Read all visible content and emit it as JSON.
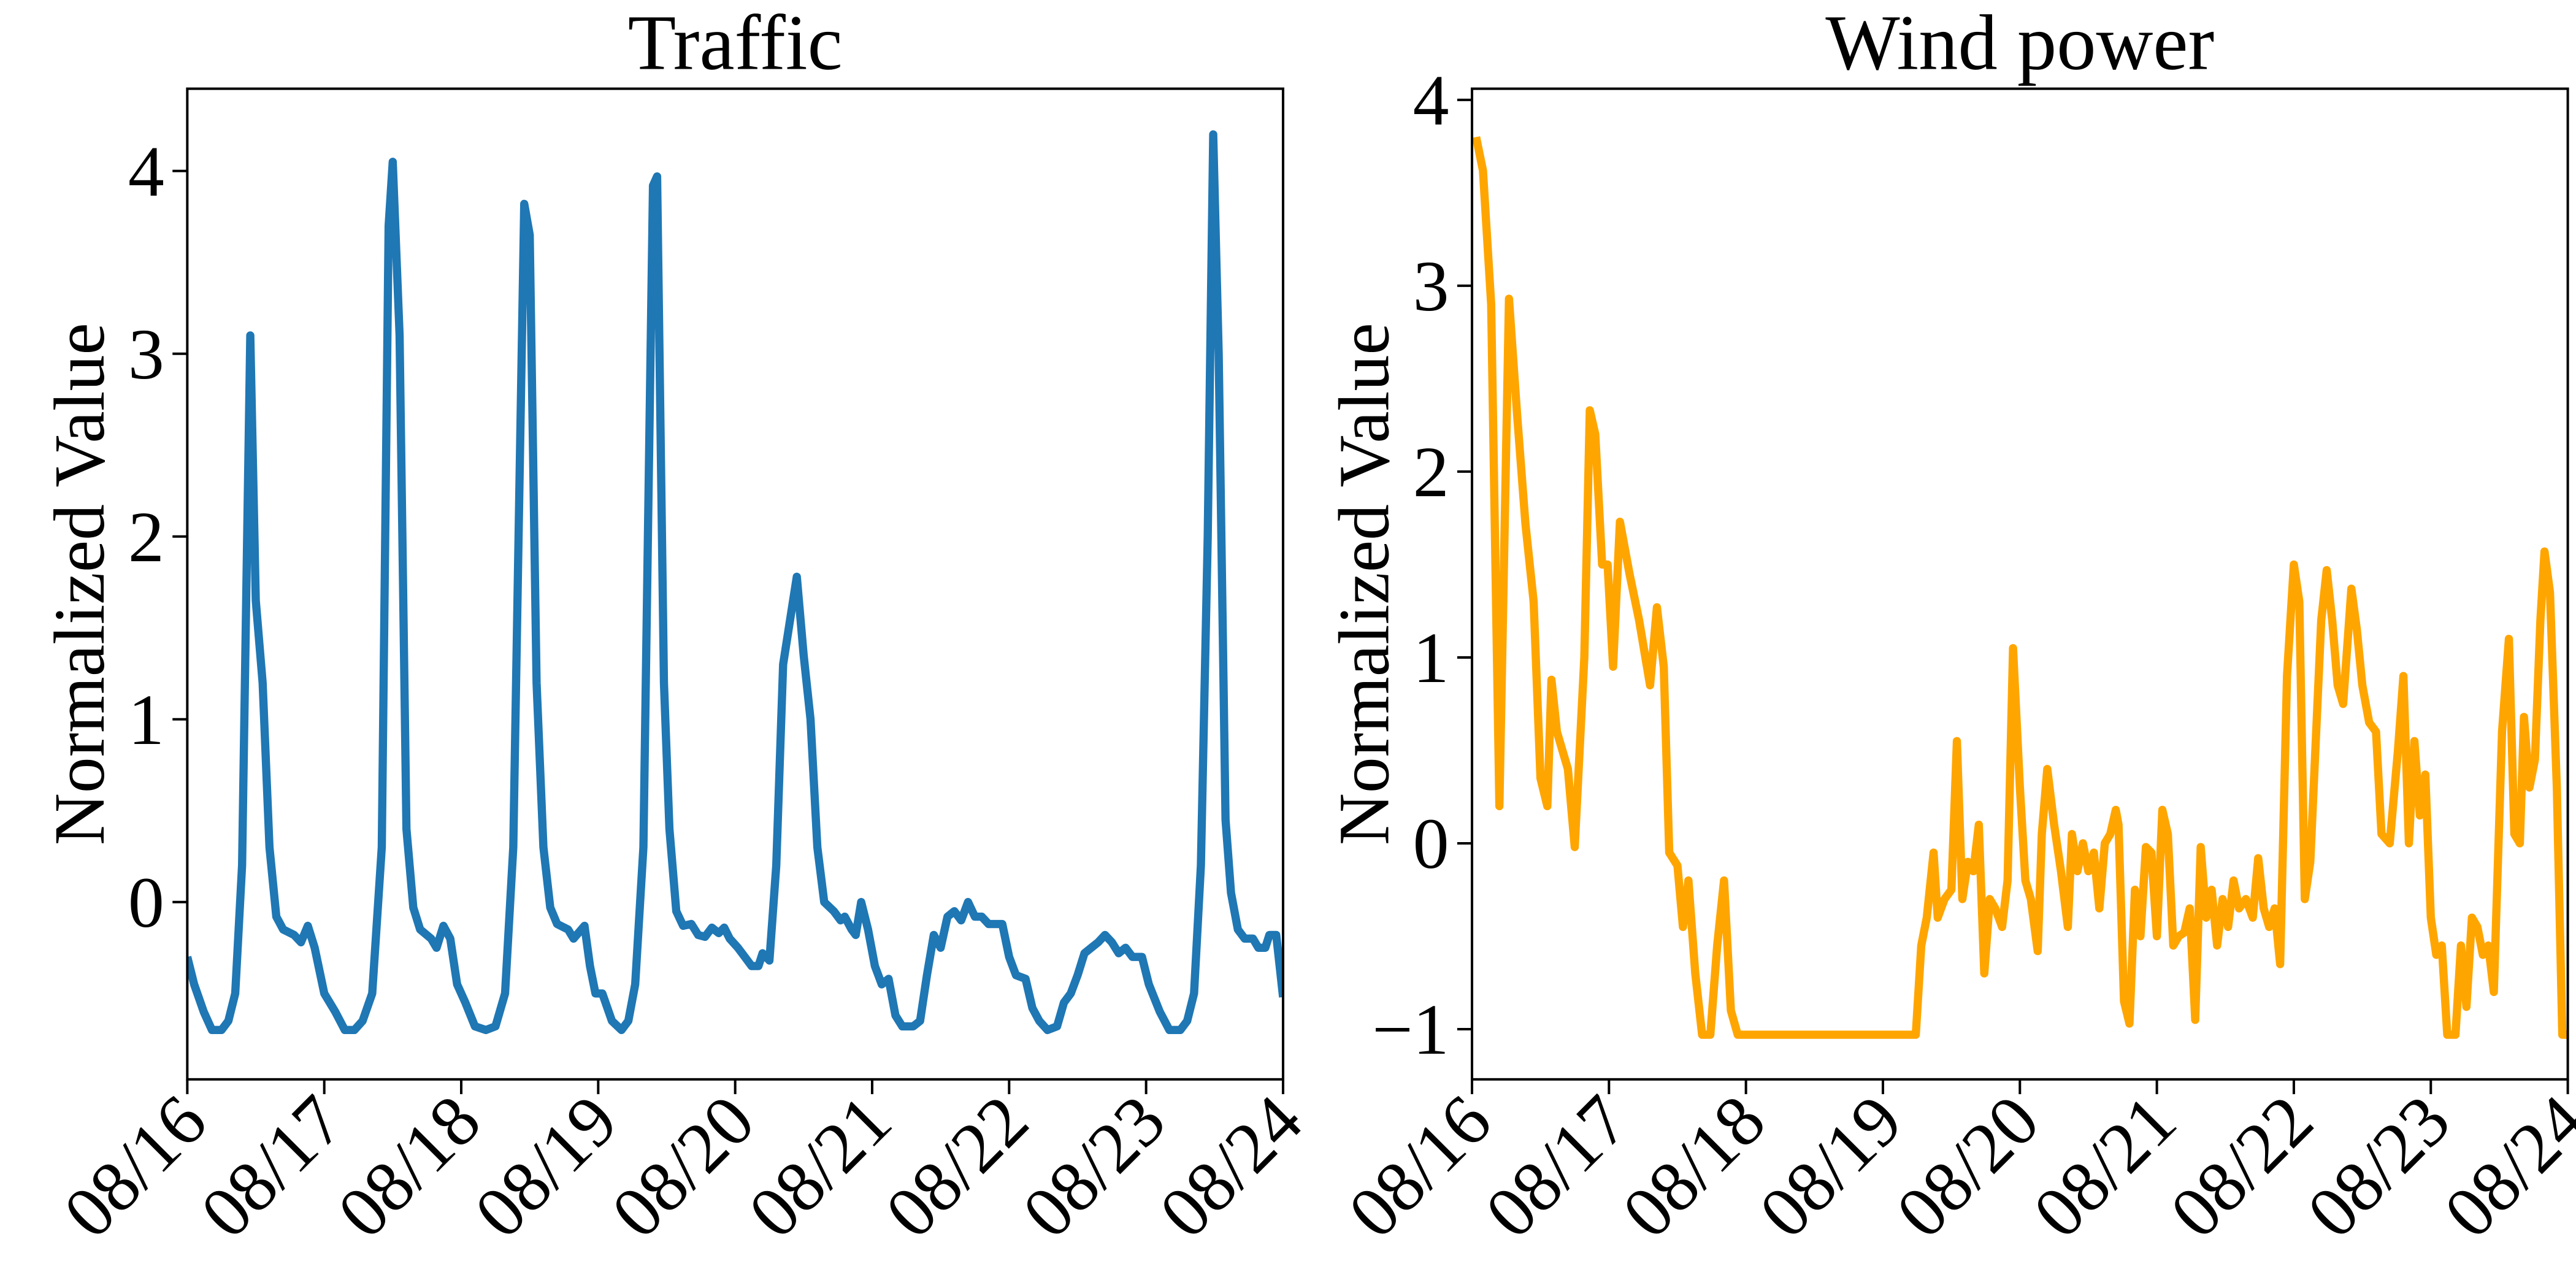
{
  "chart_data": [
    {
      "type": "line",
      "title": "Traffic",
      "y_label": "Normalized Value",
      "color": "#1f77b4",
      "xlim": [
        0,
        8
      ],
      "xticks": [
        {
          "value": 0,
          "label": "08/16"
        },
        {
          "value": 1,
          "label": "08/17"
        },
        {
          "value": 2,
          "label": "08/18"
        },
        {
          "value": 3,
          "label": "08/19"
        },
        {
          "value": 4,
          "label": "08/20"
        },
        {
          "value": 5,
          "label": "08/21"
        },
        {
          "value": 6,
          "label": "08/22"
        },
        {
          "value": 7,
          "label": "08/23"
        },
        {
          "value": 8,
          "label": "08/24"
        }
      ],
      "ylim": [
        -0.97,
        4.45
      ],
      "yticks": [
        0,
        1,
        2,
        3,
        4
      ],
      "x": [
        0,
        0.05,
        0.12,
        0.18,
        0.25,
        0.3,
        0.35,
        0.4,
        0.46,
        0.5,
        0.55,
        0.6,
        0.65,
        0.7,
        0.78,
        0.83,
        0.88,
        0.93,
        1.0,
        1.08,
        1.15,
        1.22,
        1.28,
        1.35,
        1.42,
        1.47,
        1.5,
        1.55,
        1.6,
        1.65,
        1.7,
        1.78,
        1.82,
        1.87,
        1.92,
        1.97,
        2.03,
        2.1,
        2.18,
        2.25,
        2.32,
        2.38,
        2.46,
        2.5,
        2.55,
        2.6,
        2.65,
        2.7,
        2.78,
        2.82,
        2.9,
        2.94,
        2.98,
        3.03,
        3.1,
        3.17,
        3.22,
        3.27,
        3.33,
        3.4,
        3.43,
        3.48,
        3.52,
        3.57,
        3.62,
        3.68,
        3.73,
        3.78,
        3.83,
        3.88,
        3.92,
        3.96,
        4.02,
        4.07,
        4.12,
        4.17,
        4.2,
        4.25,
        4.3,
        4.35,
        4.45,
        4.5,
        4.55,
        4.6,
        4.65,
        4.72,
        4.77,
        4.8,
        4.85,
        4.88,
        4.92,
        4.97,
        5.02,
        5.07,
        5.12,
        5.17,
        5.22,
        5.3,
        5.35,
        5.4,
        5.45,
        5.5,
        5.55,
        5.6,
        5.65,
        5.7,
        5.75,
        5.8,
        5.85,
        5.95,
        6.0,
        6.05,
        6.12,
        6.17,
        6.22,
        6.28,
        6.35,
        6.4,
        6.45,
        6.5,
        6.55,
        6.6,
        6.65,
        6.7,
        6.75,
        6.8,
        6.85,
        6.9,
        6.97,
        7.02,
        7.1,
        7.17,
        7.25,
        7.3,
        7.35,
        7.4,
        7.45,
        7.49,
        7.53,
        7.58,
        7.62,
        7.67,
        7.72,
        7.78,
        7.82,
        7.87,
        7.9,
        7.95,
        8.0
      ],
      "values": [
        -0.3,
        -0.45,
        -0.6,
        -0.7,
        -0.7,
        -0.65,
        -0.5,
        0.2,
        3.1,
        1.65,
        1.2,
        0.3,
        -0.08,
        -0.15,
        -0.18,
        -0.22,
        -0.13,
        -0.25,
        -0.5,
        -0.6,
        -0.7,
        -0.7,
        -0.65,
        -0.5,
        0.3,
        3.7,
        4.05,
        3.1,
        0.4,
        -0.03,
        -0.15,
        -0.2,
        -0.25,
        -0.13,
        -0.2,
        -0.45,
        -0.55,
        -0.68,
        -0.7,
        -0.68,
        -0.5,
        0.3,
        3.82,
        3.65,
        1.2,
        0.3,
        -0.03,
        -0.12,
        -0.15,
        -0.2,
        -0.13,
        -0.35,
        -0.5,
        -0.5,
        -0.65,
        -0.7,
        -0.65,
        -0.45,
        0.3,
        3.92,
        3.97,
        1.2,
        0.4,
        -0.05,
        -0.13,
        -0.12,
        -0.18,
        -0.19,
        -0.14,
        -0.17,
        -0.14,
        -0.2,
        -0.25,
        -0.3,
        -0.35,
        -0.35,
        -0.28,
        -0.32,
        0.2,
        1.3,
        1.78,
        1.35,
        1.0,
        0.3,
        0.0,
        -0.05,
        -0.1,
        -0.08,
        -0.15,
        -0.18,
        0.0,
        -0.15,
        -0.35,
        -0.45,
        -0.42,
        -0.62,
        -0.68,
        -0.68,
        -0.65,
        -0.4,
        -0.18,
        -0.25,
        -0.08,
        -0.05,
        -0.1,
        0.0,
        -0.08,
        -0.08,
        -0.12,
        -0.12,
        -0.3,
        -0.4,
        -0.42,
        -0.58,
        -0.65,
        -0.7,
        -0.68,
        -0.55,
        -0.5,
        -0.4,
        -0.28,
        -0.25,
        -0.22,
        -0.18,
        -0.22,
        -0.28,
        -0.25,
        -0.3,
        -0.3,
        -0.45,
        -0.6,
        -0.7,
        -0.7,
        -0.65,
        -0.5,
        0.2,
        2.0,
        4.2,
        3.0,
        0.45,
        0.05,
        -0.15,
        -0.2,
        -0.2,
        -0.25,
        -0.25,
        -0.18,
        -0.18,
        -0.52
      ]
    },
    {
      "type": "line",
      "title": "Wind power",
      "y_label": "Normalized Value",
      "color": "#ffa500",
      "xlim": [
        0,
        8
      ],
      "xticks": [
        {
          "value": 0,
          "label": "08/16"
        },
        {
          "value": 1,
          "label": "08/17"
        },
        {
          "value": 2,
          "label": "08/18"
        },
        {
          "value": 3,
          "label": "08/19"
        },
        {
          "value": 4,
          "label": "08/20"
        },
        {
          "value": 5,
          "label": "08/21"
        },
        {
          "value": 6,
          "label": "08/22"
        },
        {
          "value": 7,
          "label": "08/23"
        },
        {
          "value": 8,
          "label": "08/24"
        }
      ],
      "ylim": [
        -1.27,
        4.06
      ],
      "yticks": [
        {
          "value": -1,
          "label": "−1"
        },
        0,
        1,
        2,
        3,
        4
      ],
      "x": [
        0.03,
        0.08,
        0.14,
        0.2,
        0.27,
        0.33,
        0.39,
        0.45,
        0.5,
        0.55,
        0.58,
        0.62,
        0.7,
        0.75,
        0.82,
        0.86,
        0.9,
        0.95,
        0.99,
        1.03,
        1.08,
        1.15,
        1.22,
        1.3,
        1.35,
        1.4,
        1.44,
        1.5,
        1.54,
        1.58,
        1.63,
        1.68,
        1.74,
        1.79,
        1.84,
        1.89,
        1.94,
        2.5,
        3.24,
        3.28,
        3.32,
        3.37,
        3.4,
        3.45,
        3.5,
        3.54,
        3.58,
        3.62,
        3.66,
        3.7,
        3.74,
        3.78,
        3.82,
        3.87,
        3.91,
        3.95,
        4.0,
        4.04,
        4.08,
        4.13,
        4.16,
        4.2,
        4.25,
        4.3,
        4.35,
        4.38,
        4.42,
        4.46,
        4.5,
        4.54,
        4.58,
        4.62,
        4.66,
        4.7,
        4.72,
        4.76,
        4.8,
        4.84,
        4.88,
        4.92,
        4.96,
        5.0,
        5.04,
        5.08,
        5.12,
        5.16,
        5.2,
        5.24,
        5.28,
        5.32,
        5.36,
        5.4,
        5.44,
        5.48,
        5.52,
        5.56,
        5.6,
        5.65,
        5.7,
        5.74,
        5.78,
        5.82,
        5.86,
        5.9,
        5.95,
        6.0,
        6.04,
        6.08,
        6.12,
        6.2,
        6.24,
        6.28,
        6.32,
        6.36,
        6.42,
        6.46,
        6.5,
        6.55,
        6.6,
        6.64,
        6.7,
        6.76,
        6.8,
        6.84,
        6.88,
        6.92,
        6.96,
        7.0,
        7.04,
        7.08,
        7.12,
        7.18,
        7.22,
        7.26,
        7.3,
        7.34,
        7.38,
        7.42,
        7.46,
        7.52,
        7.57,
        7.61,
        7.65,
        7.68,
        7.72,
        7.76,
        7.8,
        7.83,
        7.87,
        7.92,
        7.96,
        8.0
      ],
      "values": [
        3.8,
        3.62,
        2.9,
        0.2,
        2.93,
        2.3,
        1.72,
        1.3,
        0.35,
        0.2,
        0.88,
        0.6,
        0.4,
        -0.02,
        1.0,
        2.33,
        2.2,
        1.5,
        1.5,
        0.95,
        1.73,
        1.45,
        1.2,
        0.85,
        1.27,
        0.95,
        -0.05,
        -0.12,
        -0.45,
        -0.2,
        -0.7,
        -1.03,
        -1.03,
        -0.55,
        -0.2,
        -0.9,
        -1.03,
        -1.03,
        -1.03,
        -0.55,
        -0.4,
        -0.05,
        -0.4,
        -0.3,
        -0.25,
        0.55,
        -0.3,
        -0.1,
        -0.15,
        0.1,
        -0.7,
        -0.3,
        -0.35,
        -0.45,
        -0.2,
        1.05,
        0.3,
        -0.2,
        -0.3,
        -0.58,
        0.05,
        0.4,
        0.1,
        -0.15,
        -0.45,
        0.05,
        -0.15,
        0.0,
        -0.15,
        -0.05,
        -0.35,
        0.0,
        0.05,
        0.18,
        0.1,
        -0.85,
        -0.97,
        -0.25,
        -0.5,
        -0.02,
        -0.05,
        -0.5,
        0.18,
        0.05,
        -0.55,
        -0.5,
        -0.48,
        -0.35,
        -0.95,
        -0.02,
        -0.4,
        -0.25,
        -0.55,
        -0.3,
        -0.45,
        -0.2,
        -0.35,
        -0.3,
        -0.4,
        -0.08,
        -0.35,
        -0.45,
        -0.35,
        -0.65,
        0.9,
        1.5,
        1.3,
        -0.3,
        -0.1,
        1.2,
        1.47,
        1.2,
        0.85,
        0.75,
        1.37,
        1.15,
        0.85,
        0.65,
        0.6,
        0.05,
        0.0,
        0.5,
        0.9,
        0.0,
        0.55,
        0.15,
        0.37,
        -0.4,
        -0.6,
        -0.55,
        -1.03,
        -1.03,
        -0.55,
        -0.88,
        -0.4,
        -0.45,
        -0.6,
        -0.55,
        -0.8,
        0.6,
        1.1,
        0.05,
        0.0,
        0.68,
        0.3,
        0.45,
        1.2,
        1.57,
        1.35,
        0.3,
        -1.03,
        -1.03
      ]
    }
  ]
}
